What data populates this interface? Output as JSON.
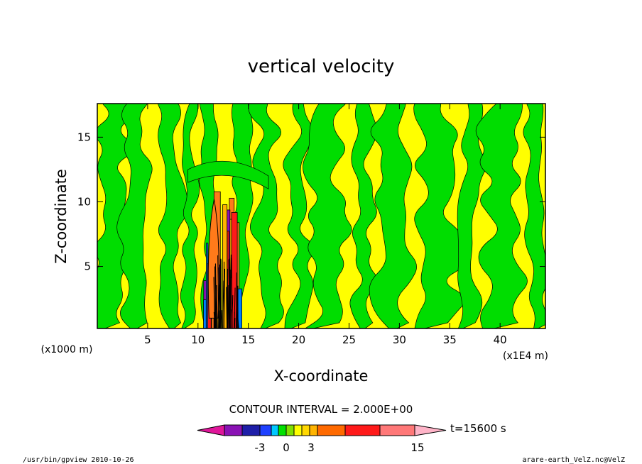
{
  "chart_data": {
    "type": "heatmap",
    "title": "vertical velocity",
    "xlabel": "X-coordinate",
    "ylabel": "Z-coordinate",
    "x_unit_left": "(x1000 m)",
    "x_unit_right": "(x1E4 m)",
    "xlim": [
      0,
      44.5
    ],
    "ylim": [
      0.2,
      17.6
    ],
    "x_ticks": [
      5,
      10,
      15,
      20,
      25,
      30,
      35,
      40
    ],
    "x_tick_labels": [
      "5",
      "10",
      "15",
      "20",
      "25",
      "30",
      "35",
      "40"
    ],
    "y_ticks": [
      5,
      10,
      15
    ],
    "y_tick_labels": [
      "5",
      "10",
      "15"
    ],
    "contour_interval": "CONTOUR INTERVAL = 2.000E+00",
    "time_label": "t=15600 s",
    "colorbar": {
      "levels": [
        -15,
        -6,
        -4,
        -3,
        -2,
        -1,
        0,
        1,
        2,
        3,
        4,
        8,
        11,
        15
      ],
      "colors": [
        "#e0169a",
        "#8a12b4",
        "#1e1ea8",
        "#1e40ff",
        "#00c8ff",
        "#00e000",
        "#7fe000",
        "#ffff00",
        "#ffd700",
        "#ffb400",
        "#ff6a00",
        "#ff1a1a",
        "#ff7878",
        "#ffb4c8"
      ],
      "tick_labels": [
        "-3",
        "0",
        "3",
        "15"
      ],
      "tick_values": [
        -3,
        0,
        3,
        15
      ]
    },
    "field_colors": {
      "positive_weak": "#ffff00",
      "negative_weak": "#00dd00",
      "strong_positive": "#ff7a1a",
      "strong_negative": "#0080ff"
    },
    "updraft_region": {
      "x_range": [
        10.5,
        14.0
      ],
      "z_range": [
        0.2,
        11.5
      ]
    },
    "grid": false,
    "legend": "bottom-center"
  },
  "footer": {
    "left": "/usr/bin/gpview   2010-10-26",
    "right": "arare-earth_VelZ.nc@VelZ"
  }
}
